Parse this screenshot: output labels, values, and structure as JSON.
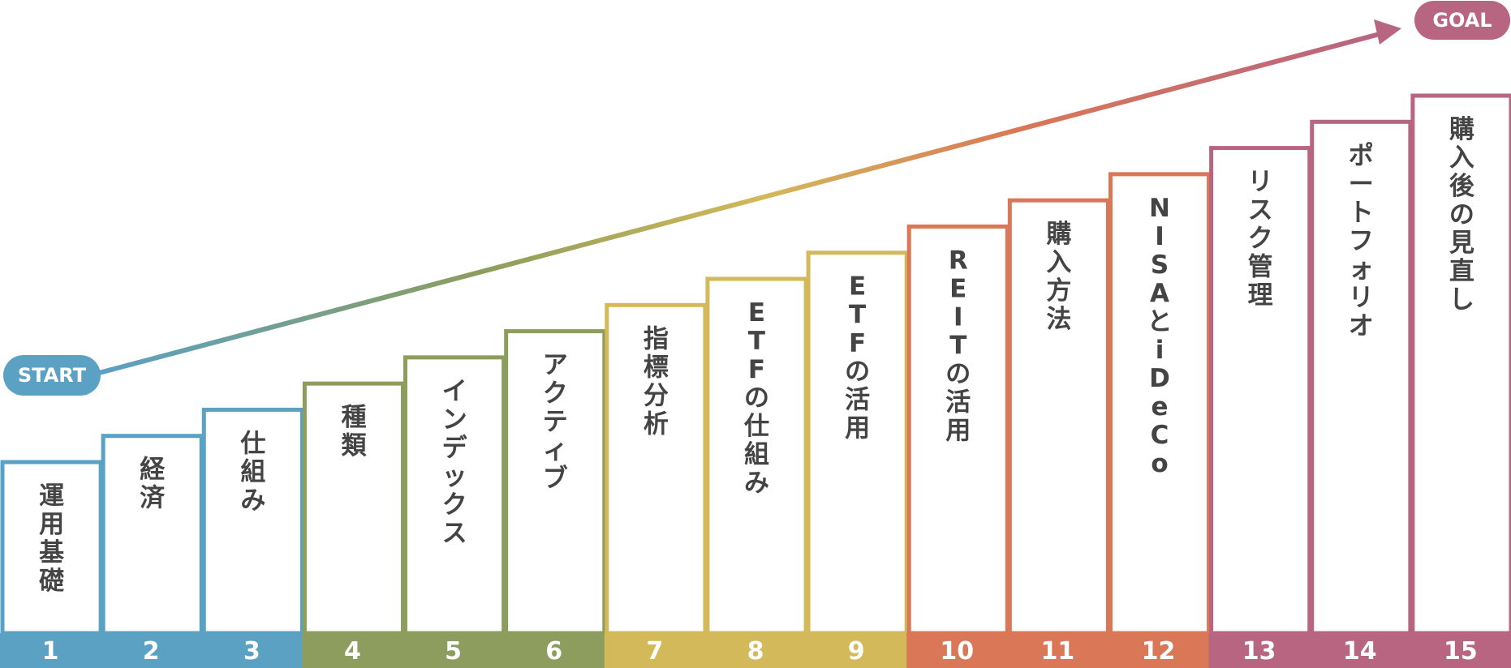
{
  "start_label": "START",
  "goal_label": "GOAL",
  "colors": {
    "blue": "#5ba1c4",
    "green": "#8d9d5d",
    "yellow": "#d3b95a",
    "orange": "#d97756",
    "pink": "#b76581",
    "text": "#444444"
  },
  "steps": [
    {
      "number": "1",
      "label": "運用基礎",
      "group": "blue"
    },
    {
      "number": "2",
      "label": "経済",
      "group": "blue"
    },
    {
      "number": "3",
      "label": "仕組み",
      "group": "blue"
    },
    {
      "number": "4",
      "label": "種類",
      "group": "green"
    },
    {
      "number": "5",
      "label": "インデックス",
      "group": "green"
    },
    {
      "number": "6",
      "label": "アクティブ",
      "group": "green"
    },
    {
      "number": "7",
      "label": "指標分析",
      "group": "yellow"
    },
    {
      "number": "8",
      "label": "ETFの仕組み",
      "group": "yellow"
    },
    {
      "number": "9",
      "label": "ETFの活用",
      "group": "yellow"
    },
    {
      "number": "10",
      "label": "REITの活用",
      "group": "orange"
    },
    {
      "number": "11",
      "label": "購入方法",
      "group": "orange"
    },
    {
      "number": "12",
      "label": "NISAとiDeCo",
      "group": "orange"
    },
    {
      "number": "13",
      "label": "リスク管理",
      "group": "pink"
    },
    {
      "number": "14",
      "label": "ポートフォリオ",
      "group": "pink"
    },
    {
      "number": "15",
      "label": "購入後の見直し",
      "group": "pink"
    }
  ]
}
